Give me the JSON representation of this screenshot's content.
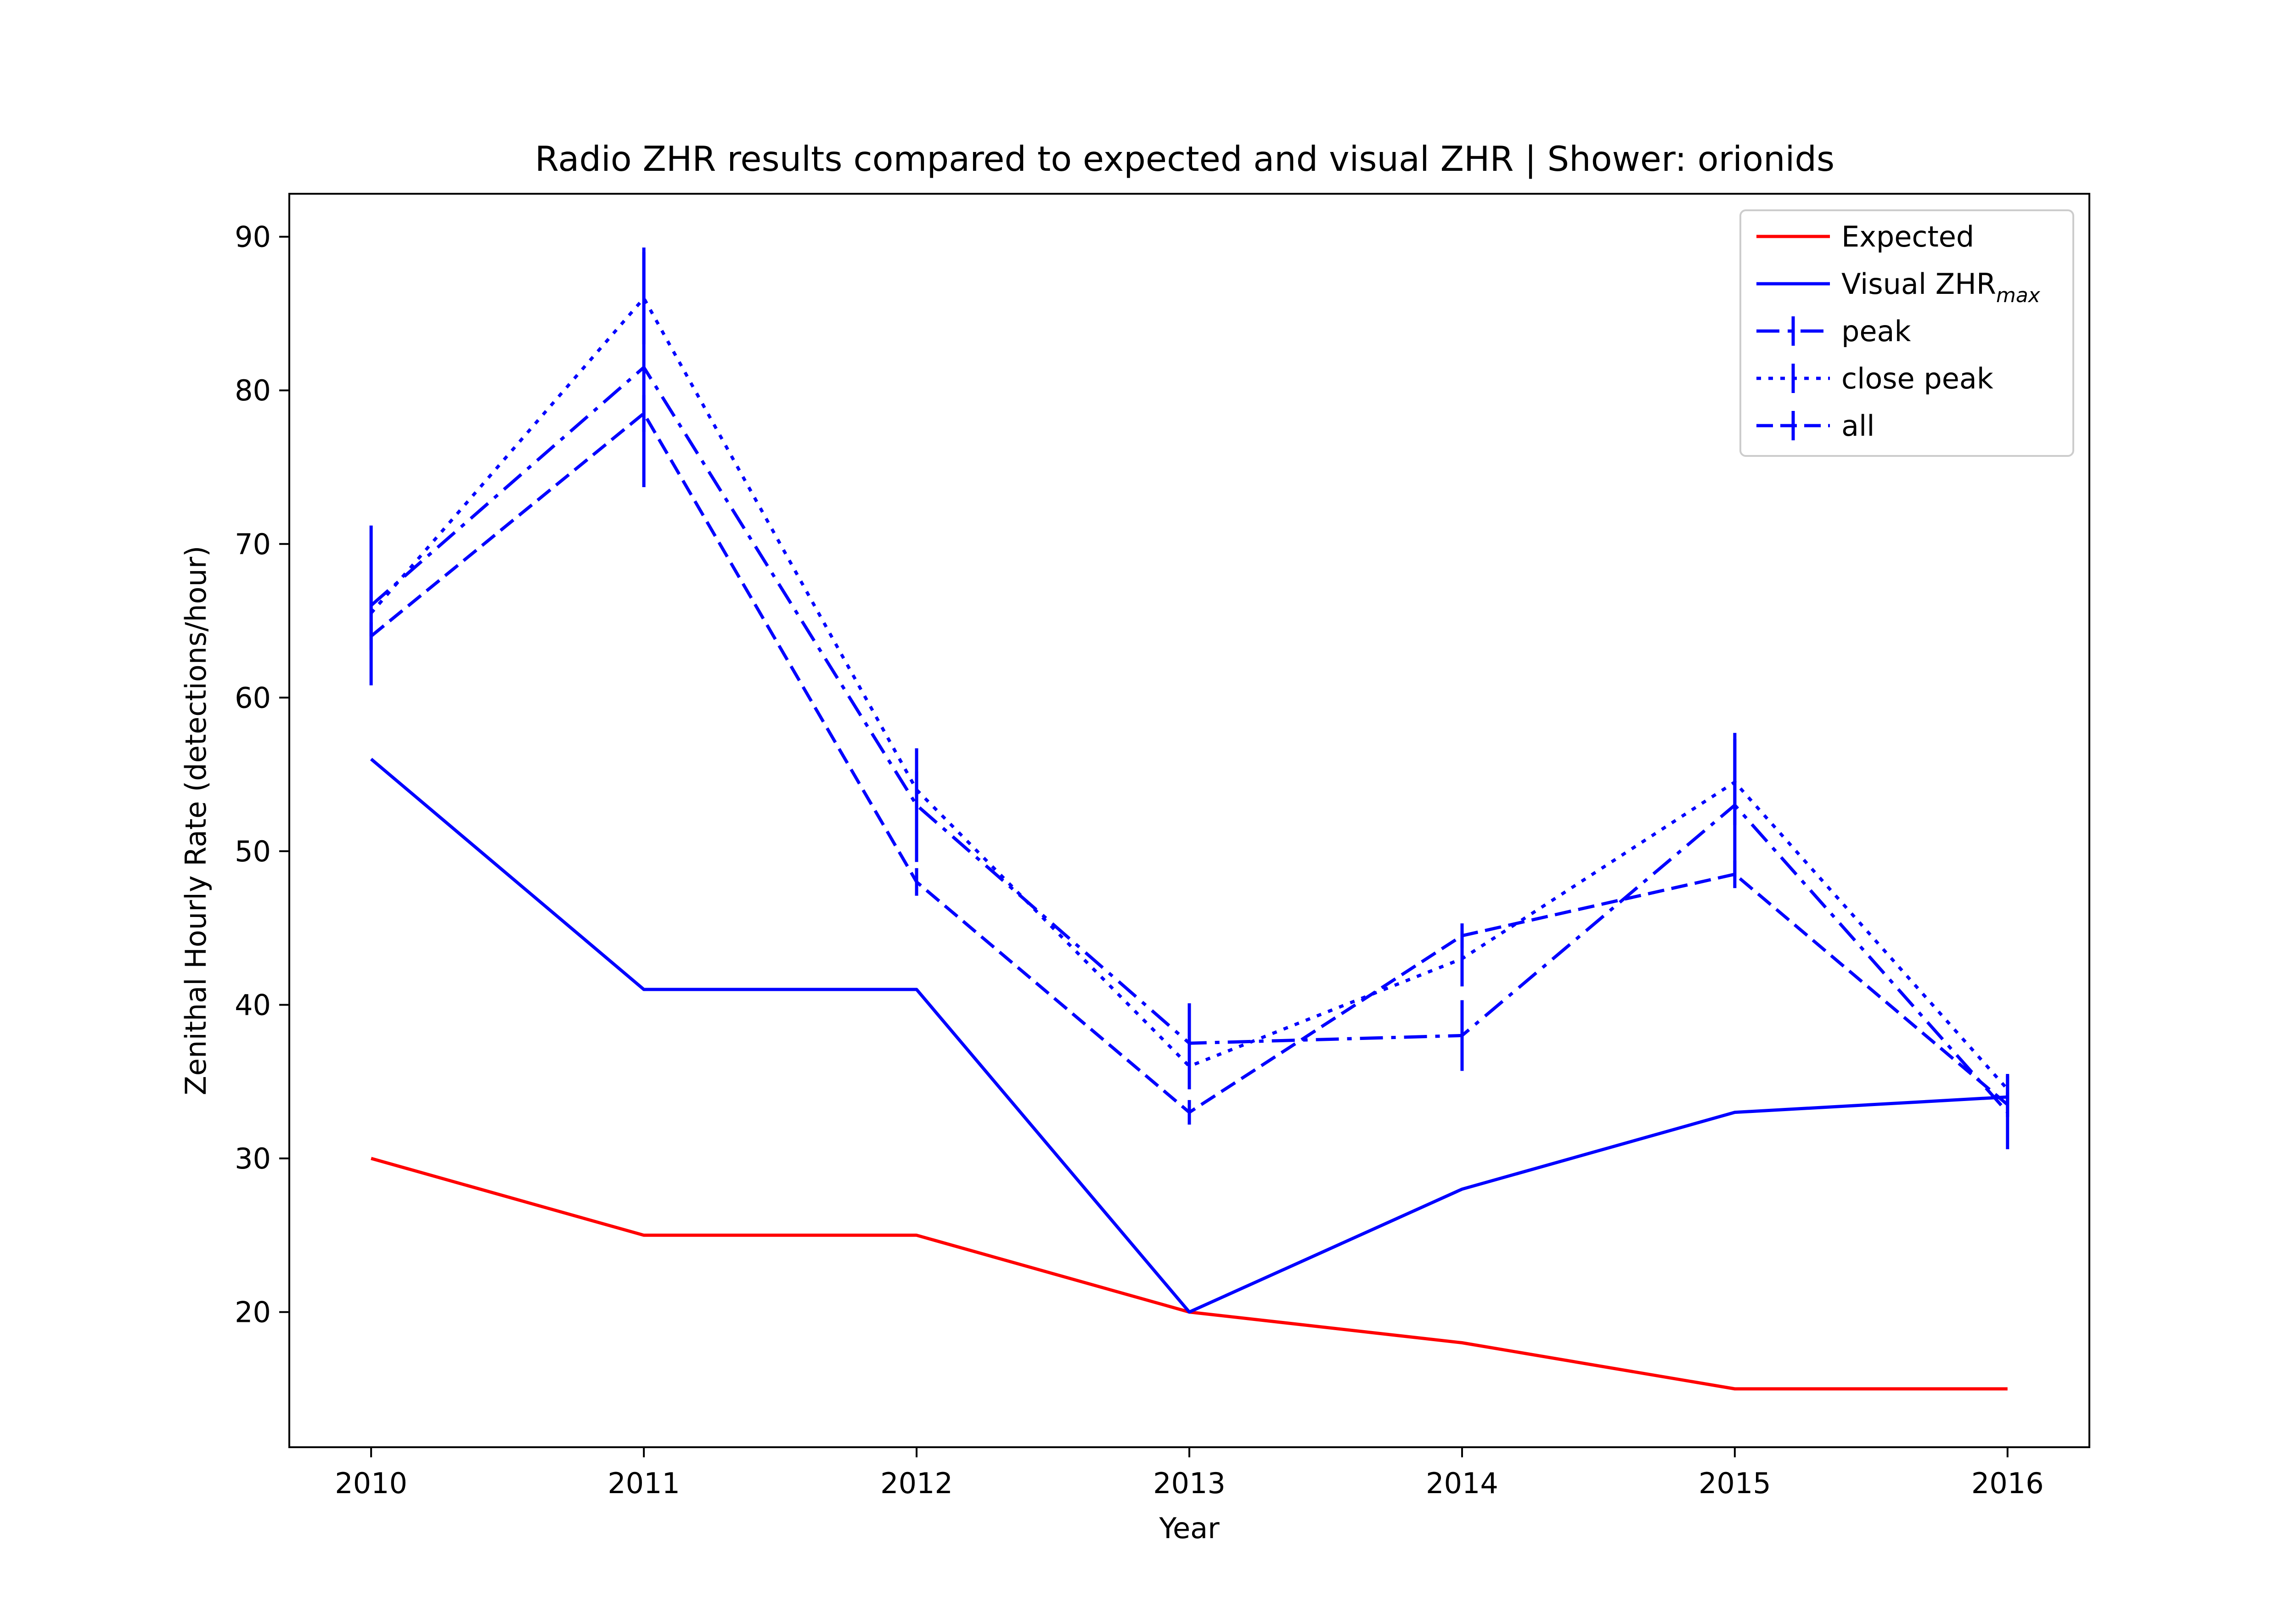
{
  "chart_data": {
    "type": "line",
    "title": "Radio ZHR results compared to expected and visual ZHR | Shower: orionids",
    "xlabel": "Year",
    "ylabel": "Zenithal Hourly Rate (detections/hour)",
    "x": [
      2010,
      2011,
      2012,
      2013,
      2014,
      2015,
      2016
    ],
    "x_tick_labels": [
      "2010",
      "2011",
      "2012",
      "2013",
      "2014",
      "2015",
      "2016"
    ],
    "xlim": [
      2009.7,
      2016.3
    ],
    "ylim": [
      11.2,
      92.8
    ],
    "yticks": [
      20,
      30,
      40,
      50,
      60,
      70,
      80,
      90
    ],
    "y_tick_labels": [
      "20",
      "30",
      "40",
      "50",
      "60",
      "70",
      "80",
      "90"
    ],
    "grid": false,
    "legend_position": "top-right",
    "series": [
      {
        "name": "Expected",
        "color": "#ff0000",
        "dash": "solid",
        "values": [
          30,
          25,
          25,
          20,
          18,
          15,
          15
        ]
      },
      {
        "name": "Visual ZHR",
        "name_subscript": "max",
        "color": "#0000ff",
        "dash": "solid",
        "values": [
          56,
          41,
          41,
          20,
          28,
          33,
          34
        ]
      },
      {
        "name": "peak",
        "color": "#0000ff",
        "dash": "dashdot",
        "values": [
          66,
          81.5,
          53,
          37.5,
          38,
          53,
          33
        ],
        "errors": [
          5.2,
          7.8,
          3.7,
          2.6,
          2.3,
          4.7,
          2.4
        ]
      },
      {
        "name": "close peak",
        "color": "#0000ff",
        "dash": "dotted",
        "values": [
          65.5,
          86,
          54,
          36,
          43,
          54.5,
          34.5
        ],
        "errors": [
          1.5,
          3.0,
          1.2,
          1.5,
          1.8,
          2.8,
          1.0
        ]
      },
      {
        "name": "all",
        "color": "#0000ff",
        "dash": "dashed",
        "values": [
          64,
          78.5,
          48,
          33,
          44.5,
          48.5,
          33.5
        ],
        "errors": [
          0.9,
          1.2,
          0.9,
          0.8,
          0.8,
          0.9,
          0.8
        ]
      }
    ]
  }
}
